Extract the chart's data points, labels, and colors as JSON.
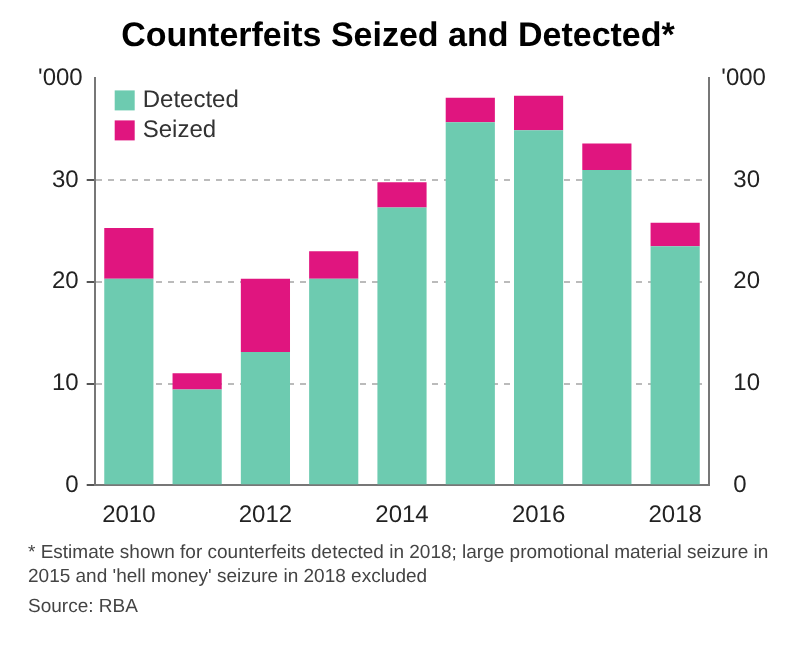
{
  "chart_data": {
    "type": "bar",
    "title": "Counterfeits Seized and Detected*",
    "stacked": true,
    "categories": [
      "2010",
      null,
      "2012",
      null,
      "2014",
      null,
      "2016",
      null,
      "2018"
    ],
    "series": [
      {
        "name": "Detected",
        "color": "#6dcbb0",
        "values": [
          20.3,
          9.4,
          13.1,
          20.3,
          27.3,
          35.7,
          34.9,
          31.0,
          23.5
        ]
      },
      {
        "name": "Seized",
        "color": "#e0157f",
        "values": [
          5.0,
          1.6,
          7.2,
          2.7,
          2.5,
          2.4,
          3.4,
          2.6,
          2.3
        ]
      }
    ],
    "ylim": [
      0,
      40
    ],
    "yticks": [
      0,
      10,
      20,
      30
    ],
    "ylabel": "'000",
    "y2lim": [
      0,
      40
    ],
    "y2ticks": [
      0,
      10,
      20,
      30
    ],
    "y2label": "'000",
    "grid": "y",
    "legend": "top left",
    "annotations": [
      "*   Estimate shown for counterfeits detected in 2018; large promotional material seizure in 2015 and 'hell money' seizure in 2018 excluded",
      "Source:   RBA"
    ]
  }
}
